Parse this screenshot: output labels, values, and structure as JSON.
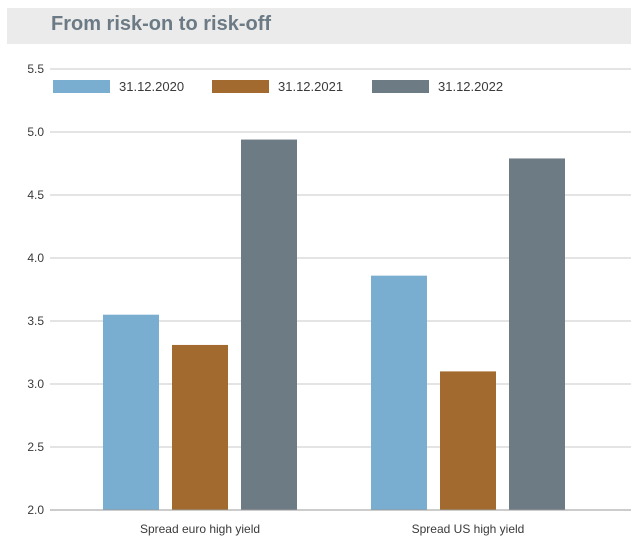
{
  "chart_data": {
    "type": "bar",
    "title": "From risk-on to risk-off",
    "categories": [
      "Spread euro high yield",
      "Spread US high yield"
    ],
    "series": [
      {
        "name": "31.12.2020",
        "values": [
          3.55,
          3.86
        ],
        "color": "#7aaed1"
      },
      {
        "name": "31.12.2021",
        "values": [
          3.31,
          3.1
        ],
        "color": "#a36a2f"
      },
      {
        "name": "31.12.2022",
        "values": [
          4.94,
          4.79
        ],
        "color": "#6d7b85"
      }
    ],
    "ylim": [
      2.0,
      5.5
    ],
    "yticks": [
      "2.0",
      "2.5",
      "3.0",
      "3.5",
      "4.0",
      "4.5",
      "5.0",
      "5.5"
    ],
    "xlabel": "",
    "ylabel": "",
    "grid": true,
    "legend": "top"
  }
}
